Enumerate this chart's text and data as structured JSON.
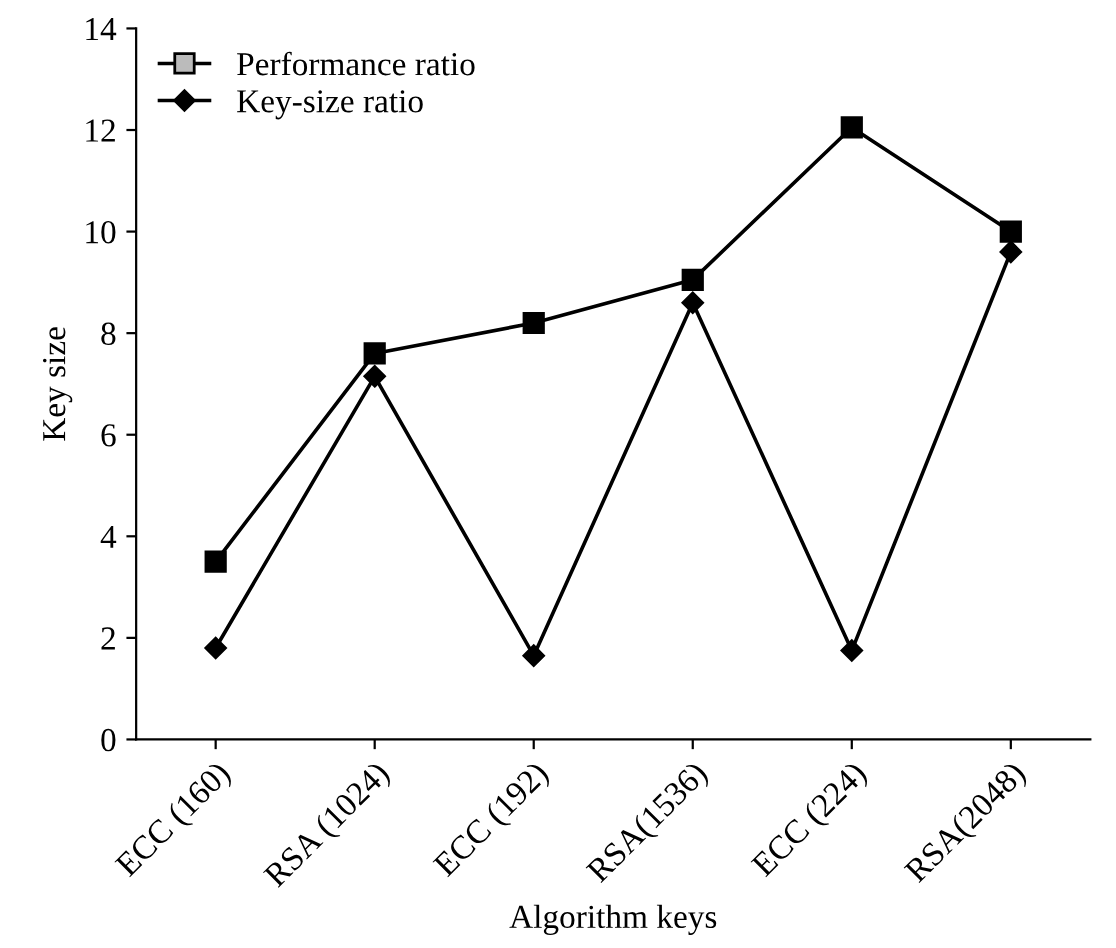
{
  "chart_data": {
    "type": "line",
    "xlabel": "Algorithm keys",
    "ylabel": "Key size",
    "categories": [
      "ECC (160)",
      "RSA (1024)",
      "ECC (192)",
      "RSA(1536)",
      "ECC (224)",
      "RSA(2048)"
    ],
    "series": [
      {
        "name": "Performance ratio",
        "color": "#000000",
        "marker": "square",
        "values": [
          3.5,
          7.6,
          8.2,
          9.05,
          12.05,
          10.0
        ]
      },
      {
        "name": "Key-size ratio",
        "color": "#000000",
        "marker": "diamond",
        "values": [
          1.8,
          7.15,
          1.65,
          8.6,
          1.75,
          9.6
        ]
      }
    ],
    "ylim": [
      0,
      14
    ],
    "yticks": [
      0,
      2,
      4,
      6,
      8,
      10,
      12,
      14
    ],
    "grid": false,
    "legend": "top left",
    "line_style": "solid"
  }
}
